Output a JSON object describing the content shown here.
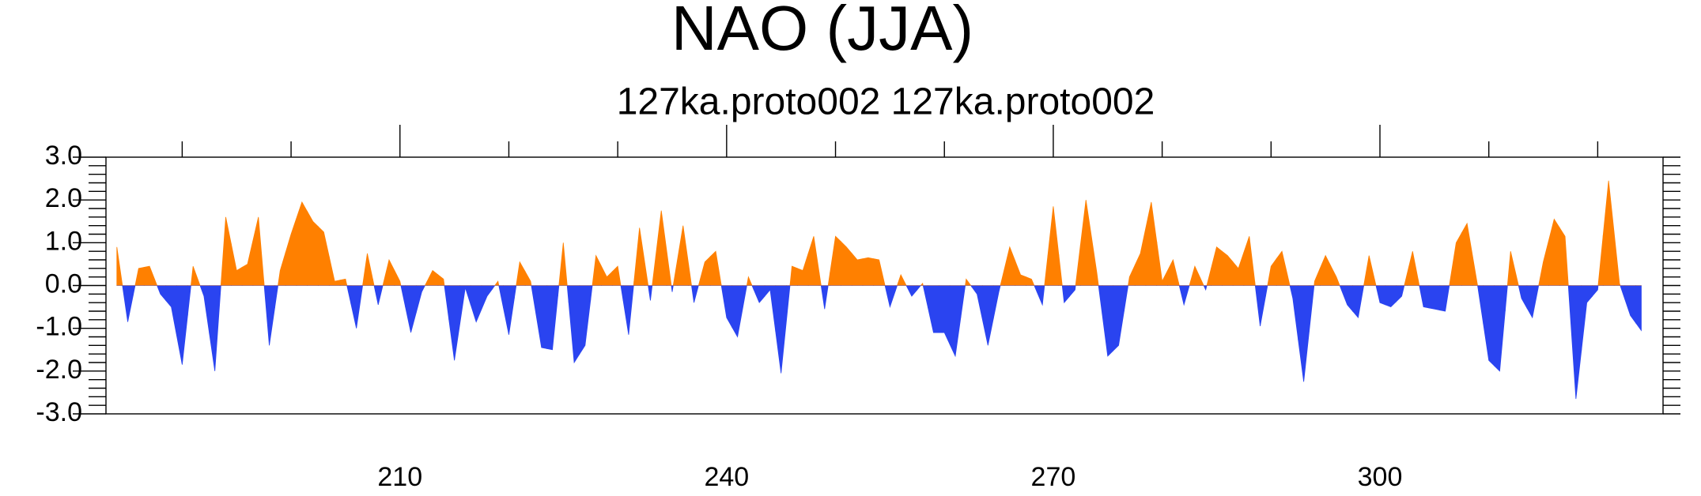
{
  "chart_data": {
    "type": "area",
    "title": "NAO (JJA)",
    "subtitle": "127ka.proto002  127ka.proto002",
    "x": [
      184,
      185,
      186,
      187,
      188,
      189,
      190,
      191,
      192,
      193,
      194,
      195,
      196,
      197,
      198,
      199,
      200,
      201,
      202,
      203,
      204,
      205,
      206,
      207,
      208,
      209,
      210,
      211,
      212,
      213,
      214,
      215,
      216,
      217,
      218,
      219,
      220,
      221,
      222,
      223,
      224,
      225,
      226,
      227,
      228,
      229,
      230,
      231,
      232,
      233,
      234,
      235,
      236,
      237,
      238,
      239,
      240,
      241,
      242,
      243,
      244,
      245,
      246,
      247,
      248,
      249,
      250,
      251,
      252,
      253,
      254,
      255,
      256,
      257,
      258,
      259,
      260,
      261,
      262,
      263,
      264,
      265,
      266,
      267,
      268,
      269,
      270,
      271,
      272,
      273,
      274,
      275,
      276,
      277,
      278,
      279,
      280,
      281,
      282,
      283,
      284,
      285,
      286,
      287,
      288,
      289,
      290,
      291,
      292,
      293,
      294,
      295,
      296,
      297,
      298,
      299,
      300,
      301,
      302,
      303,
      304,
      305,
      306,
      307,
      308,
      309,
      310,
      311,
      312,
      313,
      314,
      315,
      316,
      317,
      318,
      319,
      320,
      321,
      322,
      323,
      324
    ],
    "values": [
      0.9,
      -0.85,
      0.4,
      0.45,
      -0.2,
      -0.5,
      -1.85,
      0.45,
      -0.25,
      -2.0,
      1.6,
      0.35,
      0.5,
      1.6,
      -1.4,
      0.35,
      1.2,
      1.95,
      1.5,
      1.25,
      0.1,
      0.15,
      -1.0,
      0.75,
      -0.45,
      0.6,
      0.1,
      -1.1,
      -0.15,
      0.35,
      0.15,
      -1.75,
      -0.05,
      -0.85,
      -0.25,
      0.1,
      -1.15,
      0.55,
      0.1,
      -1.45,
      -1.5,
      1.0,
      -1.8,
      -1.4,
      0.7,
      0.2,
      0.45,
      -1.15,
      1.35,
      -0.35,
      1.75,
      -0.15,
      1.4,
      -0.4,
      0.55,
      0.8,
      -0.75,
      -1.2,
      0.2,
      -0.4,
      -0.1,
      -2.05,
      0.45,
      0.35,
      1.15,
      -0.55,
      1.15,
      0.9,
      0.6,
      0.65,
      0.6,
      -0.5,
      0.25,
      -0.25,
      0.05,
      -1.1,
      -1.1,
      -1.65,
      0.15,
      -0.2,
      -1.4,
      -0.15,
      0.9,
      0.25,
      0.15,
      -0.45,
      1.85,
      -0.4,
      -0.1,
      2.0,
      0.3,
      -1.65,
      -1.4,
      0.2,
      0.75,
      1.95,
      0.1,
      0.6,
      -0.45,
      0.45,
      -0.1,
      0.9,
      0.7,
      0.4,
      1.15,
      -0.95,
      0.45,
      0.8,
      -0.3,
      -2.25,
      0.1,
      0.7,
      0.2,
      -0.45,
      -0.75,
      0.7,
      -0.4,
      -0.5,
      -0.25,
      0.8,
      -0.5,
      -0.55,
      -0.6,
      1.0,
      1.45,
      -0.05,
      -1.75,
      -2.0,
      0.8,
      -0.3,
      -0.75,
      0.55,
      1.55,
      1.15,
      -2.65,
      -0.4,
      -0.1,
      2.45,
      0.05,
      -0.7,
      -1.05
    ],
    "colors": {
      "above": "#ff8000",
      "below": "#2a44f0"
    },
    "xlim": [
      183,
      326
    ],
    "xticks": [
      210,
      240,
      270,
      300
    ],
    "xminorticks": [
      190,
      200,
      220,
      230,
      250,
      260,
      280,
      290,
      310,
      320
    ],
    "ylim": [
      -3,
      3
    ],
    "yticks": [
      {
        "value": -3,
        "label": "-3.0"
      },
      {
        "value": -2,
        "label": "-2.0"
      },
      {
        "value": -1,
        "label": "-1.0"
      },
      {
        "value": 0,
        "label": "0.0"
      },
      {
        "value": 1,
        "label": "1.0"
      },
      {
        "value": 2,
        "label": "2.0"
      },
      {
        "value": 3,
        "label": "3.0"
      }
    ],
    "yminor_per_major": 5
  }
}
